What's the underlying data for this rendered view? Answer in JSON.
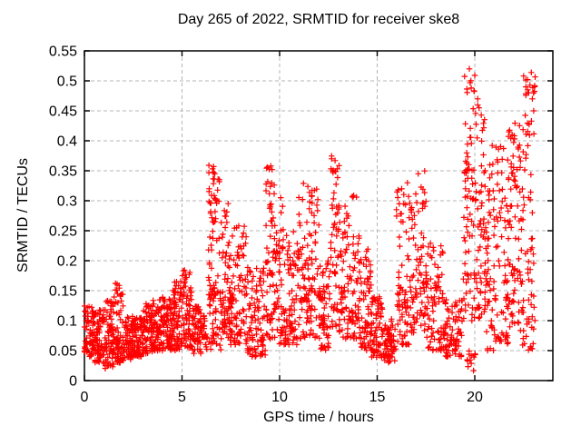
{
  "figure": {
    "background": "#ffffff"
  },
  "chart_data": {
    "type": "scatter",
    "title": "Day 265 of 2022, SRMTID for receiver ske8",
    "xlabel": "GPS time / hours",
    "ylabel": "SRMTID / TECUs",
    "xlim": [
      0,
      24
    ],
    "ylim": [
      0,
      0.55
    ],
    "xticks": [
      0,
      5,
      10,
      15,
      20
    ],
    "xticklabels": [
      "0",
      "5",
      "10",
      "15",
      "20"
    ],
    "yticks": [
      0,
      0.05,
      0.1,
      0.15,
      0.2,
      0.25,
      0.3,
      0.35,
      0.4,
      0.45,
      0.5,
      0.55
    ],
    "yticklabels": [
      "0",
      "0.05",
      "0.1",
      "0.15",
      "0.2",
      "0.25",
      "0.3",
      "0.35",
      "0.4",
      "0.45",
      "0.5",
      "0.55"
    ],
    "grid": true,
    "grid_style": "dashed",
    "grid_color": "#b4b4b4",
    "axis_color": "#000000",
    "text_color": "#000000",
    "legend": false,
    "marker": "plus",
    "marker_color": "#ff0000",
    "marker_size": 7,
    "seed": 265,
    "point_bins_format": "[hour_start, hour_end, y_min_TECUs, y_max_TECUs, point_count, bias_exponent_toward_y_min]",
    "point_bins": [
      [
        0.0,
        0.5,
        0.04,
        0.125,
        70,
        1.3
      ],
      [
        0.5,
        1.0,
        0.03,
        0.12,
        70,
        1.3
      ],
      [
        1.0,
        1.5,
        0.02,
        0.135,
        70,
        1.2
      ],
      [
        1.5,
        2.0,
        0.03,
        0.165,
        75,
        1.4
      ],
      [
        2.0,
        2.5,
        0.035,
        0.11,
        68,
        1.2
      ],
      [
        2.5,
        3.0,
        0.04,
        0.105,
        68,
        1.2
      ],
      [
        3.0,
        3.5,
        0.045,
        0.13,
        70,
        1.3
      ],
      [
        3.5,
        4.0,
        0.05,
        0.135,
        70,
        1.3
      ],
      [
        4.0,
        4.5,
        0.05,
        0.14,
        70,
        1.3
      ],
      [
        4.5,
        5.0,
        0.05,
        0.17,
        72,
        1.4
      ],
      [
        5.0,
        5.5,
        0.055,
        0.185,
        65,
        1.5
      ],
      [
        5.5,
        6.3,
        0.045,
        0.125,
        80,
        1.2
      ],
      [
        6.3,
        7.0,
        0.05,
        0.16,
        45,
        1.2
      ],
      [
        6.35,
        6.95,
        0.14,
        0.36,
        55,
        0.9
      ],
      [
        7.0,
        7.6,
        0.08,
        0.3,
        65,
        1.3
      ],
      [
        7.0,
        7.6,
        0.06,
        0.14,
        25,
        1.0
      ],
      [
        7.6,
        8.3,
        0.06,
        0.27,
        70,
        1.5
      ],
      [
        8.3,
        9.3,
        0.04,
        0.2,
        95,
        1.4
      ],
      [
        9.3,
        9.8,
        0.1,
        0.36,
        55,
        1.0
      ],
      [
        9.3,
        9.8,
        0.06,
        0.12,
        15,
        1.0
      ],
      [
        9.8,
        10.3,
        0.06,
        0.31,
        55,
        1.6
      ],
      [
        10.3,
        10.9,
        0.06,
        0.25,
        60,
        1.4
      ],
      [
        10.9,
        12.1,
        0.07,
        0.33,
        130,
        1.4
      ],
      [
        12.1,
        12.6,
        0.05,
        0.21,
        55,
        1.3
      ],
      [
        12.6,
        13.05,
        0.09,
        0.375,
        55,
        1.1
      ],
      [
        13.05,
        13.7,
        0.07,
        0.3,
        65,
        1.5
      ],
      [
        13.7,
        14.15,
        0.07,
        0.31,
        50,
        1.7
      ],
      [
        14.15,
        14.7,
        0.05,
        0.22,
        60,
        1.5
      ],
      [
        14.7,
        15.3,
        0.035,
        0.14,
        65,
        1.3
      ],
      [
        15.3,
        15.95,
        0.03,
        0.105,
        65,
        1.2
      ],
      [
        15.95,
        16.7,
        0.06,
        0.33,
        75,
        1.6
      ],
      [
        16.7,
        17.5,
        0.08,
        0.35,
        80,
        1.5
      ],
      [
        17.5,
        18.4,
        0.05,
        0.23,
        80,
        1.6
      ],
      [
        18.4,
        19.4,
        0.04,
        0.135,
        85,
        1.3
      ],
      [
        19.6,
        20.1,
        0.015,
        0.05,
        12,
        1.0
      ],
      [
        19.4,
        20.0,
        0.1,
        0.52,
        75,
        1.25
      ],
      [
        20.0,
        20.6,
        0.1,
        0.46,
        70,
        1.25
      ],
      [
        20.6,
        21.2,
        0.05,
        0.4,
        65,
        1.3
      ],
      [
        21.2,
        21.8,
        0.06,
        0.42,
        65,
        1.3
      ],
      [
        21.8,
        22.3,
        0.08,
        0.43,
        60,
        1.1
      ],
      [
        22.3,
        23.1,
        0.05,
        0.515,
        90,
        1.15
      ]
    ],
    "notable_points": [
      [
        5.07,
        0.183
      ],
      [
        6.62,
        0.357
      ],
      [
        6.68,
        0.345
      ],
      [
        9.55,
        0.358
      ],
      [
        9.62,
        0.352
      ],
      [
        12.84,
        0.367
      ],
      [
        16.55,
        0.33
      ],
      [
        17.1,
        0.345
      ],
      [
        19.72,
        0.52
      ],
      [
        19.76,
        0.497
      ],
      [
        19.82,
        0.488
      ],
      [
        20.15,
        0.47
      ],
      [
        20.22,
        0.455
      ],
      [
        21.75,
        0.415
      ],
      [
        22.5,
        0.508
      ],
      [
        22.62,
        0.49
      ],
      [
        22.9,
        0.514
      ],
      [
        22.95,
        0.47
      ],
      [
        23.02,
        0.45
      ]
    ]
  }
}
